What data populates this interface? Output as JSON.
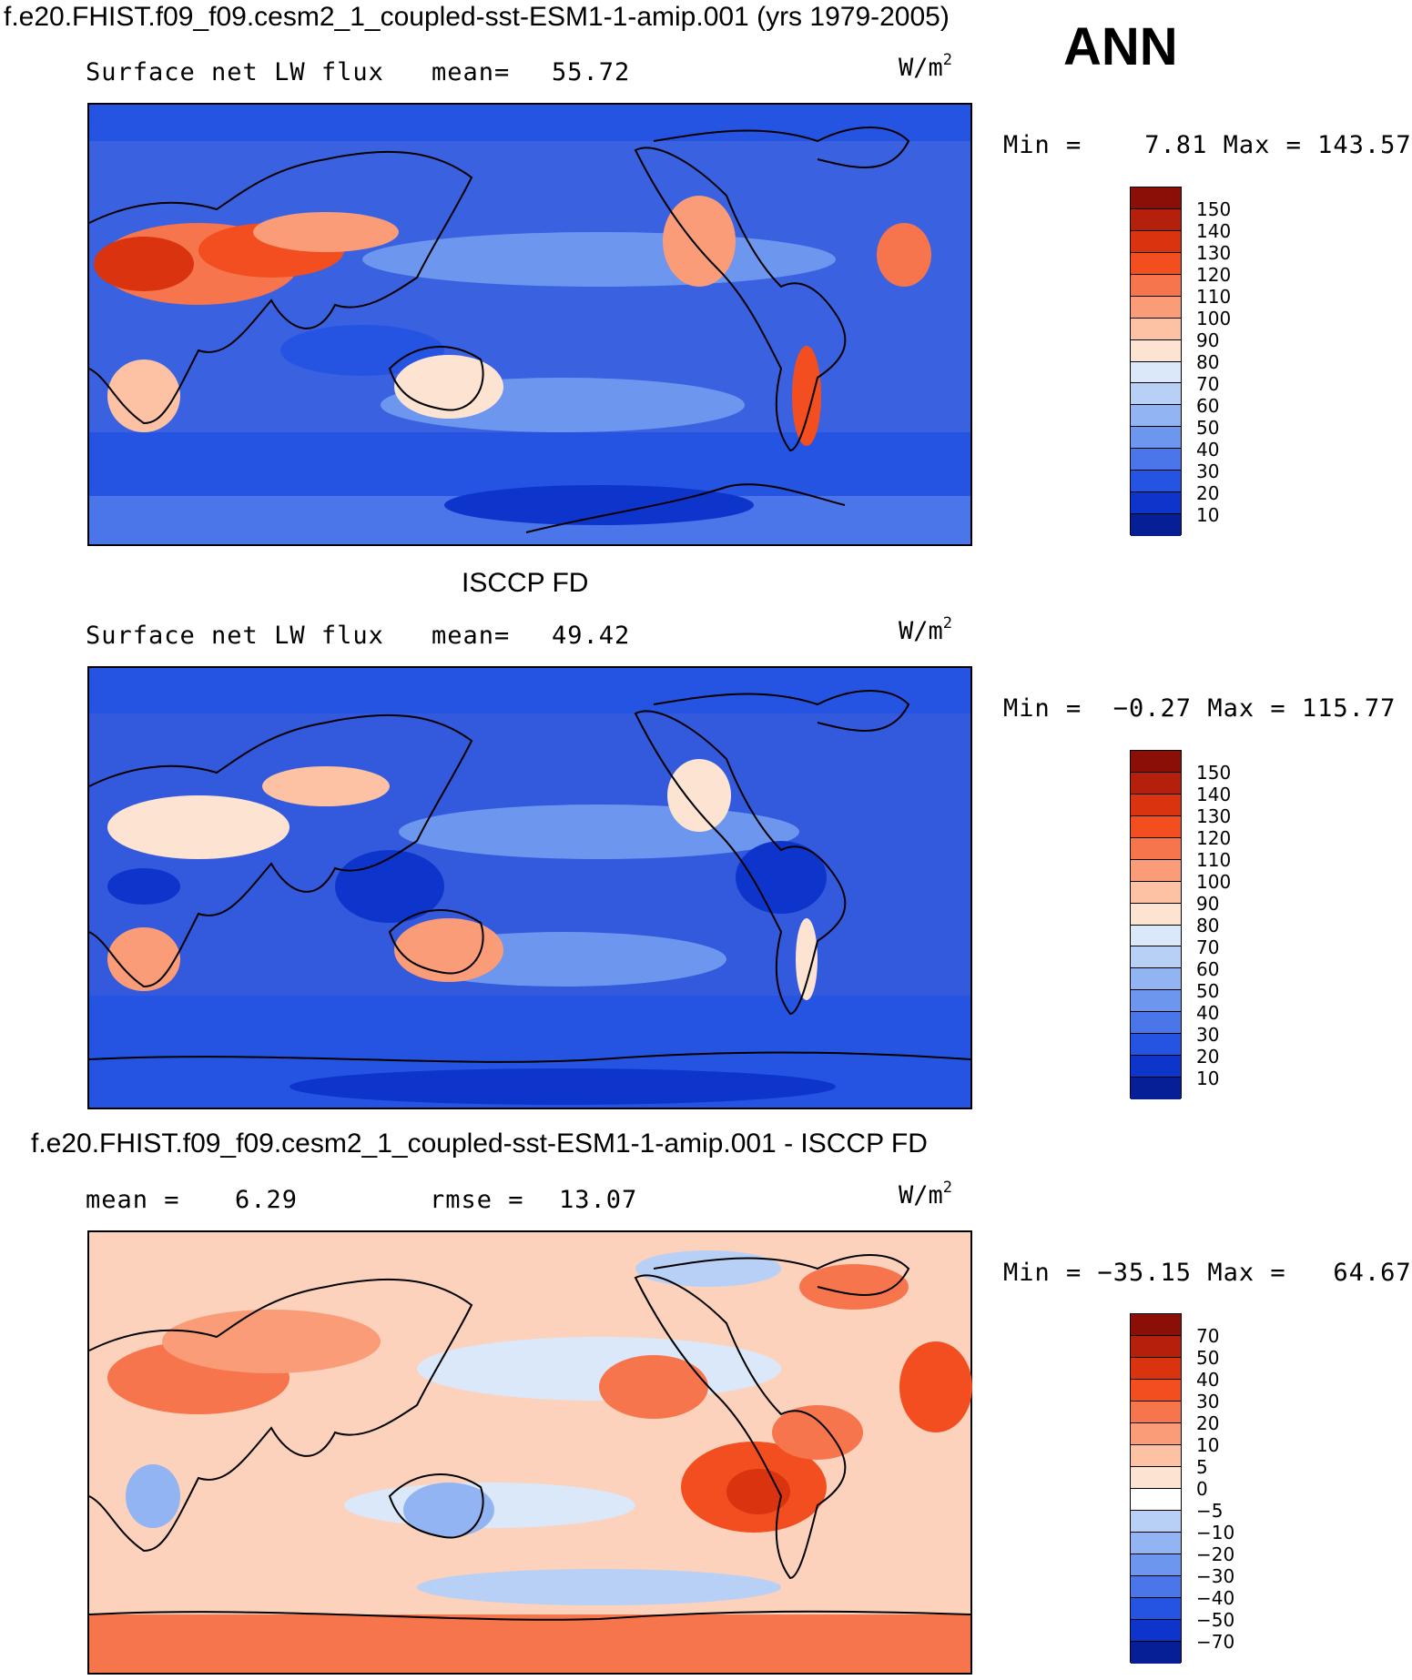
{
  "header": {
    "title": "f.e20.FHIST.f09_f09.cesm2_1_coupled-sst-ESM1-1-amip.001 (yrs 1979-2005)",
    "season": "ANN"
  },
  "panels": [
    {
      "id": "model",
      "title": "",
      "variable": "Surface net LW flux",
      "stat1_label": "mean=",
      "stat1_value": "55.72",
      "stat2_label": "",
      "stat2_value": "",
      "units_base": "W/m",
      "units_exp": "2",
      "minmax": "Min =    7.81 Max = 143.57",
      "legend": {
        "labels": [
          "150",
          "140",
          "130",
          "120",
          "110",
          "100",
          "90",
          "80",
          "70",
          "60",
          "50",
          "40",
          "30",
          "20",
          "10"
        ],
        "colors": [
          "#8b0f06",
          "#b5200c",
          "#d9330f",
          "#f24e1f",
          "#f7754d",
          "#fb9c78",
          "#fdc1a4",
          "#fde3d2",
          "#dbe8fa",
          "#b9d0f6",
          "#93b4f2",
          "#6d96ee",
          "#4a76e9",
          "#2654e2",
          "#0d35cc",
          "#061e96"
        ]
      },
      "fill": "#3a62e0"
    },
    {
      "id": "obs",
      "title": "ISCCP FD",
      "variable": "Surface net LW flux",
      "stat1_label": "mean=",
      "stat1_value": "49.42",
      "stat2_label": "",
      "stat2_value": "",
      "units_base": "W/m",
      "units_exp": "2",
      "minmax": "Min =  −0.27 Max = 115.77",
      "legend": {
        "labels": [
          "150",
          "140",
          "130",
          "120",
          "110",
          "100",
          "90",
          "80",
          "70",
          "60",
          "50",
          "40",
          "30",
          "20",
          "10"
        ],
        "colors": [
          "#8b0f06",
          "#b5200c",
          "#d9330f",
          "#f24e1f",
          "#f7754d",
          "#fb9c78",
          "#fdc1a4",
          "#fde3d2",
          "#dbe8fa",
          "#b9d0f6",
          "#93b4f2",
          "#6d96ee",
          "#4a76e9",
          "#2654e2",
          "#0d35cc",
          "#061e96"
        ]
      },
      "fill": "#3359dd"
    },
    {
      "id": "diff",
      "title": "f.e20.FHIST.f09_f09.cesm2_1_coupled-sst-ESM1-1-amip.001 - ISCCP FD",
      "variable": "",
      "stat1_label": "mean =",
      "stat1_value": "6.29",
      "stat2_label": "rmse =",
      "stat2_value": "13.07",
      "units_base": "W/m",
      "units_exp": "2",
      "minmax": "Min = −35.15 Max =   64.67",
      "legend": {
        "labels": [
          "70",
          "50",
          "40",
          "30",
          "20",
          "10",
          "5",
          "0",
          "−5",
          "−10",
          "−20",
          "−30",
          "−40",
          "−50",
          "−70"
        ],
        "colors": [
          "#8b0f06",
          "#b5200c",
          "#d9330f",
          "#f24e1f",
          "#f7754d",
          "#fb9c78",
          "#fdc1a4",
          "#fde3d2",
          "#ffffff",
          "#b9d0f6",
          "#93b4f2",
          "#6d96ee",
          "#4a76e9",
          "#2654e2",
          "#0d35cc",
          "#061e96"
        ]
      },
      "fill": "#fcd2bd"
    }
  ]
}
